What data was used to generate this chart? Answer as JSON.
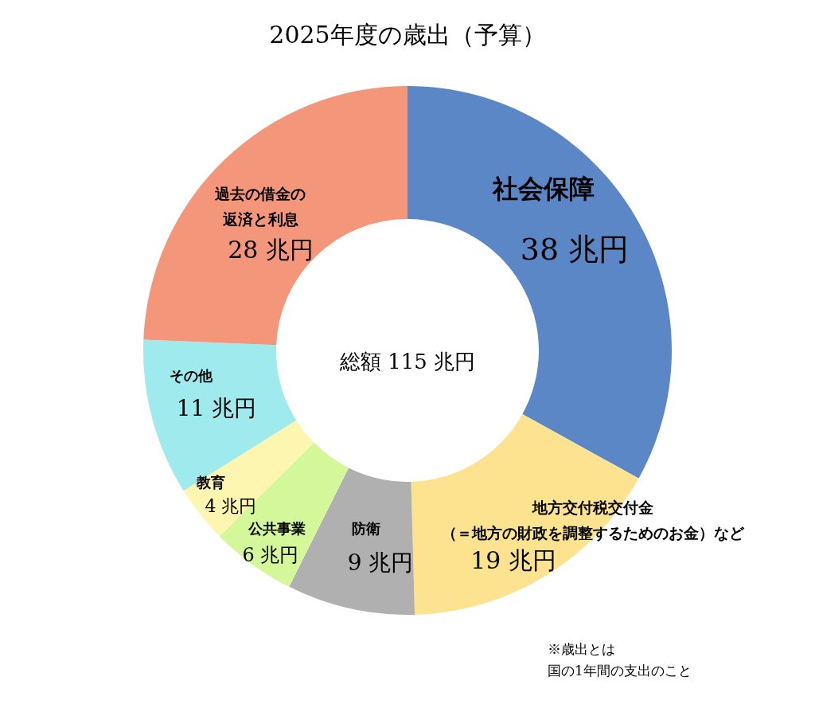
{
  "chart_data": {
    "type": "donut",
    "title": "2025年度の歳出（予算）",
    "categories": [
      "社会保障",
      "地方交付税交付金（＝地方の財政を調整するためのお金）など",
      "防衛",
      "公共事業",
      "教育",
      "その他",
      "過去の借金の返済と利息"
    ],
    "values": [
      38,
      19,
      9,
      6,
      4,
      11,
      28
    ],
    "value_labels": [
      "38 兆円",
      "19 兆円",
      "9 兆円",
      "6 兆円",
      "4 兆円",
      "11 兆円",
      "28 兆円"
    ],
    "colors": [
      "#5b87c6",
      "#fde38f",
      "#b0b0b0",
      "#d4f79a",
      "#fdf6b0",
      "#9eeaed",
      "#f4967a"
    ],
    "annotations": [
      "総額 115 兆円",
      "※歳出とは国の1年間の支出のこと"
    ]
  }
}
